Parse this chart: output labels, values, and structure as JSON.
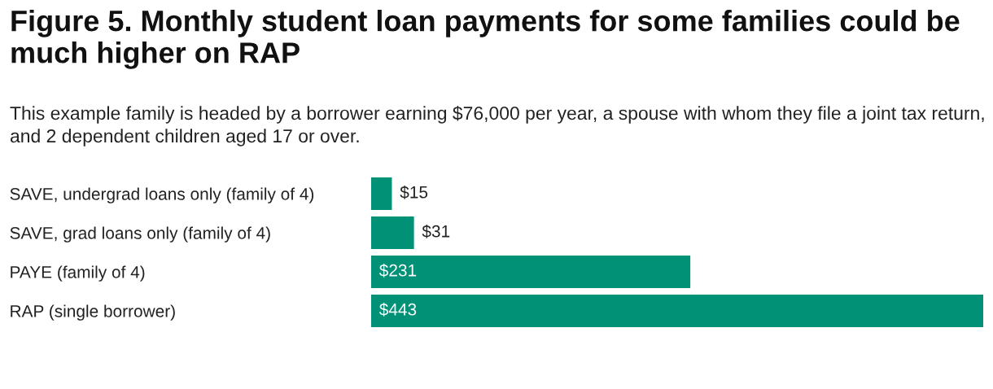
{
  "chart_data": {
    "type": "bar",
    "orientation": "horizontal",
    "title": "Figure 5. Monthly student loan payments for some families could be much higher on RAP",
    "subtitle": "This example family is headed by a borrower earning $76,000 per year, a spouse with whom they file a joint tax return, and 2 dependent children aged 17 or over.",
    "categories": [
      "SAVE, undergrad loans only (family of 4)",
      "SAVE, grad loans only (family of 4)",
      "PAYE (family of 4)",
      "RAP (single borrower)"
    ],
    "values": [
      15,
      31,
      231,
      443
    ],
    "value_labels": [
      "$15",
      "$31",
      "$231",
      "$443"
    ],
    "color": "#019176",
    "tick_labels": "y"
  }
}
